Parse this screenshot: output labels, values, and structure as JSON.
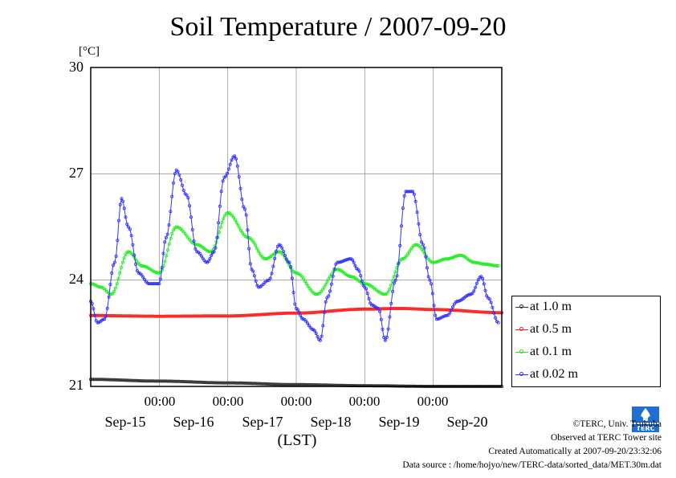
{
  "chart_data": {
    "type": "line",
    "title": "Soil Temperature / 2007-09-20",
    "unit_label": "[°C]",
    "xlabel": "(LST)",
    "ylim": [
      21,
      30
    ],
    "yticks": [
      "30",
      "27",
      "24",
      "21"
    ],
    "x_time_labels": [
      "00:00",
      "00:00",
      "00:00",
      "00:00",
      "00:00"
    ],
    "x_date_labels": [
      "Sep-15",
      "Sep-16",
      "Sep-17",
      "Sep-18",
      "Sep-19",
      "Sep-20"
    ],
    "x_unit": "days from Sep-15 00:00 LST",
    "xlim": [
      -1.0,
      5.0
    ],
    "grid": true,
    "legend_position": "bottom-right outside",
    "series": [
      {
        "name": "at 1.0 m",
        "color": "#333333",
        "x": [
          -1.0,
          0.0,
          1.0,
          2.0,
          3.0,
          4.0,
          5.0
        ],
        "y": [
          21.2,
          21.15,
          21.1,
          21.05,
          21.02,
          21.0,
          21.0
        ]
      },
      {
        "name": "at 0.5 m",
        "color": "#ff2020",
        "x": [
          -1.0,
          0.0,
          1.0,
          2.0,
          3.0,
          3.5,
          4.0,
          5.0
        ],
        "y": [
          23.0,
          22.98,
          22.99,
          23.07,
          23.18,
          23.2,
          23.17,
          23.08
        ]
      },
      {
        "name": "at 0.1 m",
        "color": "#22ee22",
        "x": [
          -1.0,
          -0.85,
          -0.7,
          -0.45,
          -0.25,
          0.0,
          0.25,
          0.55,
          0.75,
          1.0,
          1.3,
          1.55,
          1.75,
          2.0,
          2.3,
          2.6,
          2.8,
          3.0,
          3.3,
          3.55,
          3.75,
          4.0,
          4.2,
          4.4,
          4.6,
          4.75,
          4.95
        ],
        "y": [
          23.9,
          23.8,
          23.6,
          24.8,
          24.4,
          24.2,
          25.5,
          25.0,
          24.8,
          25.9,
          25.2,
          24.6,
          24.8,
          24.2,
          23.6,
          24.3,
          24.1,
          23.9,
          23.6,
          24.6,
          25.0,
          24.5,
          24.6,
          24.7,
          24.5,
          24.45,
          24.4
        ]
      },
      {
        "name": "at 0.02 m",
        "color": "#3333ff",
        "x": [
          -1.0,
          -0.9,
          -0.8,
          -0.65,
          -0.55,
          -0.45,
          -0.3,
          -0.15,
          0.0,
          0.1,
          0.25,
          0.4,
          0.55,
          0.7,
          0.8,
          0.95,
          1.1,
          1.25,
          1.35,
          1.45,
          1.6,
          1.75,
          1.9,
          2.0,
          2.1,
          2.25,
          2.35,
          2.45,
          2.6,
          2.8,
          2.9,
          3.0,
          3.1,
          3.2,
          3.3,
          3.45,
          3.6,
          3.7,
          3.85,
          3.95,
          4.05,
          4.2,
          4.35,
          4.55,
          4.7,
          4.8,
          4.95
        ],
        "y": [
          23.4,
          22.8,
          22.9,
          24.5,
          26.3,
          25.5,
          24.2,
          23.9,
          23.9,
          25.2,
          27.1,
          26.4,
          24.8,
          24.5,
          24.8,
          26.9,
          27.5,
          26.0,
          24.3,
          23.8,
          24.0,
          25.0,
          24.5,
          23.2,
          22.9,
          22.6,
          22.3,
          23.5,
          24.5,
          24.6,
          24.3,
          23.8,
          23.3,
          23.2,
          22.3,
          24.0,
          26.5,
          26.5,
          25.0,
          24.0,
          22.9,
          23.0,
          23.4,
          23.6,
          24.1,
          23.5,
          22.8
        ]
      }
    ]
  },
  "credits": {
    "copyright": "©TERC, Univ. Tsukuba",
    "observed": "Observed at TERC Tower site",
    "created": "Created Automatically at 2007-09-20/23:32:06",
    "source": "Data source : /home/hojyo/new/TERC-data/sorted_data/MET.30m.dat",
    "logo_text": "TERC"
  }
}
